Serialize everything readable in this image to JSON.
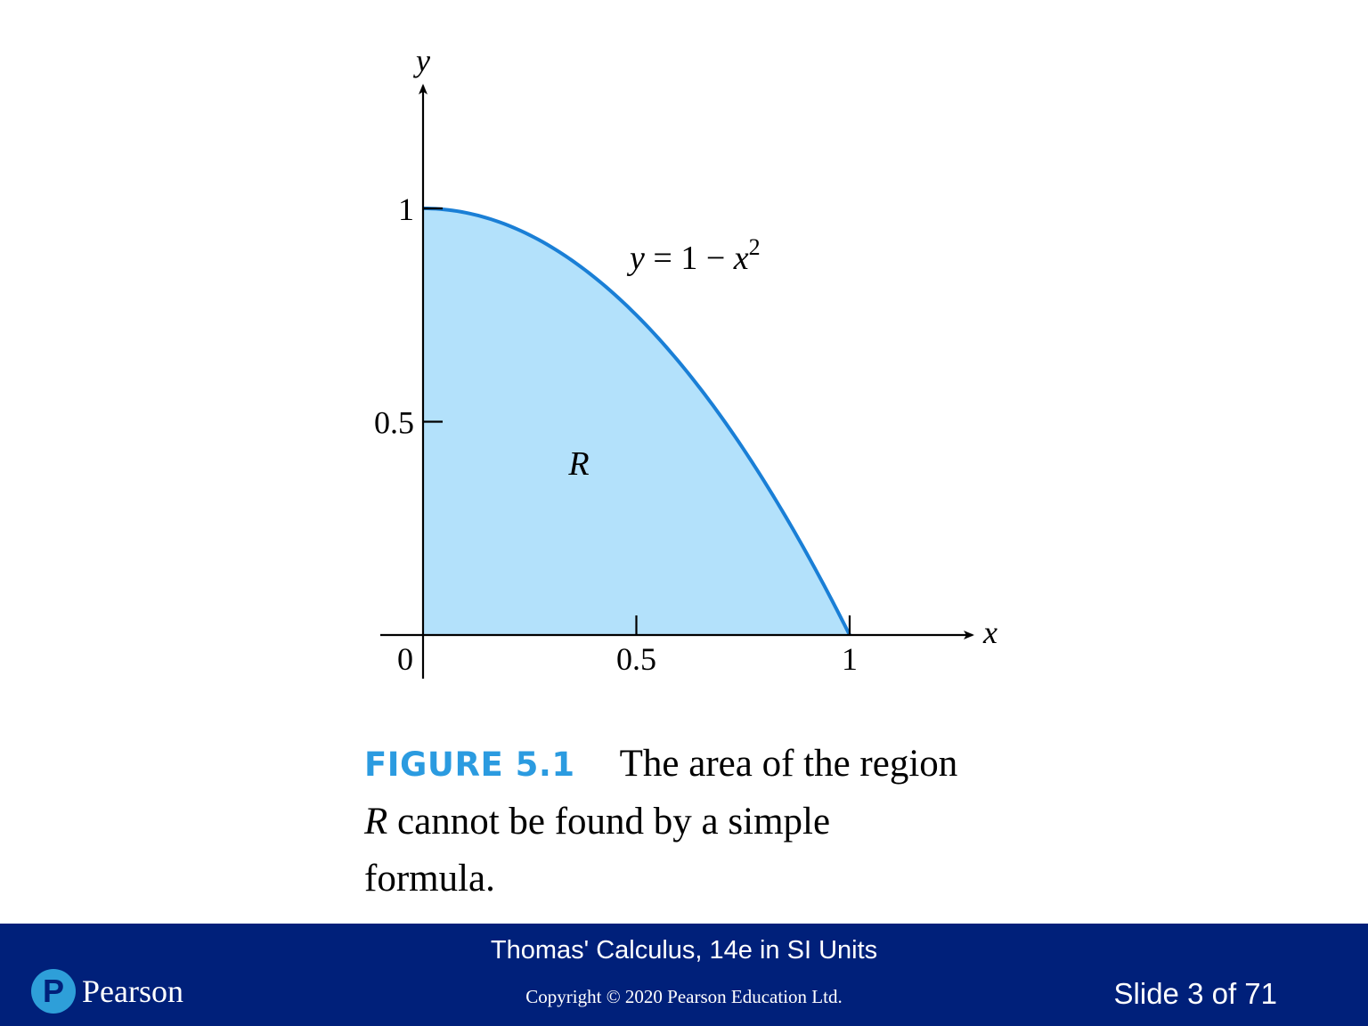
{
  "chart_data": {
    "type": "area",
    "title": "",
    "function_label": {
      "lhs": "y",
      "eq": "=",
      "one": "1",
      "minus": "−",
      "var": "x",
      "exp": "2"
    },
    "region_label": "R",
    "xlabel": "x",
    "ylabel": "y",
    "xlim": [
      0,
      1.3
    ],
    "ylim": [
      0,
      1.5
    ],
    "x_ticks": [
      {
        "value": 0.5,
        "label": "0.5"
      },
      {
        "value": 1,
        "label": "1"
      }
    ],
    "y_ticks": [
      {
        "value": 0.5,
        "label": "0.5"
      },
      {
        "value": 1,
        "label": "1"
      }
    ],
    "origin_label": "0",
    "x": [
      0,
      0.1,
      0.2,
      0.3,
      0.4,
      0.5,
      0.6,
      0.7,
      0.8,
      0.9,
      1.0
    ],
    "series": [
      {
        "values": [
          1,
          0.99,
          0.96,
          0.91,
          0.84,
          0.75,
          0.64,
          0.51,
          0.36,
          0.19,
          0
        ]
      }
    ],
    "grid": false,
    "colors": {
      "fill": "#b3e1fb",
      "curve": "#1a7fd6",
      "axis": "#000000"
    }
  },
  "caption": {
    "figure_label": "FIGURE 5.1",
    "line1": "The area of the region",
    "line2_var": "R",
    "line2_rest": " cannot be found by a simple",
    "line3": "formula."
  },
  "footer": {
    "book_title": "Thomas' Calculus, 14e in SI Units",
    "copyright": "Copyright © 2020 Pearson Education Ltd.",
    "slide_number": "Slide 3 of 71",
    "brand": "Pearson",
    "logo_letter": "P",
    "background": "#00207a"
  }
}
